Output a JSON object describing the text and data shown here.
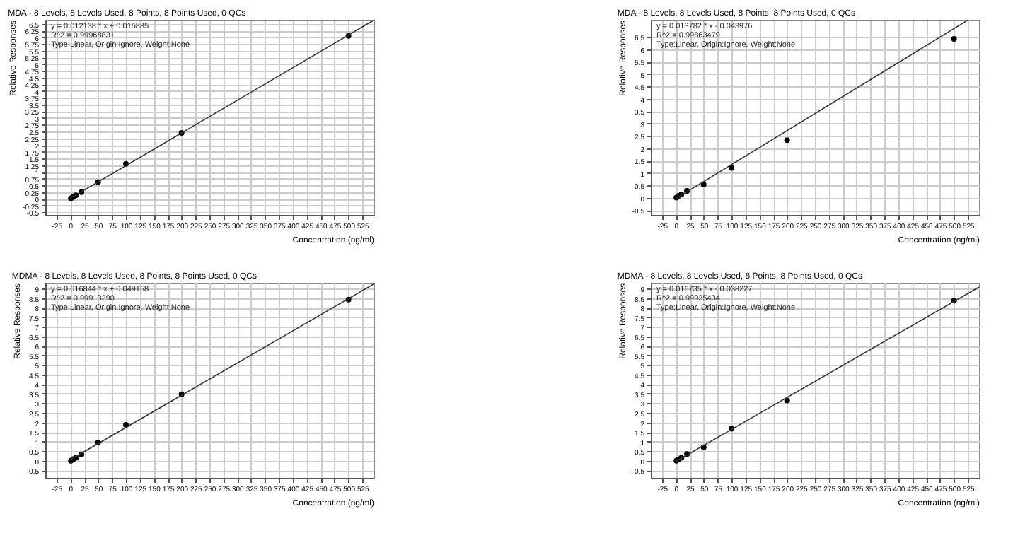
{
  "chart_data": [
    {
      "type": "scatter",
      "title": "MDA - 8 Levels, 8 Levels Used, 8 Points, 8 Points Used, 0 QCs",
      "xlabel": "Concentration (ng/ml)",
      "ylabel": "Relative Responses",
      "annotations": [
        "y = 0.012138 * x + 0.015885",
        "R^2 = 0.99968831",
        "Type:Linear, Origin:Ignore, Weight:None"
      ],
      "xlim": [
        -45,
        545
      ],
      "xticks": [
        -25,
        0,
        25,
        50,
        75,
        100,
        125,
        150,
        175,
        200,
        225,
        250,
        275,
        300,
        325,
        350,
        375,
        400,
        425,
        450,
        475,
        500,
        525
      ],
      "ylim": [
        -0.6,
        6.65
      ],
      "yticks": [
        -0.5,
        -0.25,
        0,
        0.25,
        0.5,
        0.75,
        1,
        1.25,
        1.5,
        1.75,
        2,
        2.25,
        2.5,
        2.75,
        3,
        3.25,
        3.5,
        3.75,
        4,
        4.25,
        4.5,
        4.75,
        5,
        5.25,
        5.5,
        5.75,
        6,
        6.25,
        6.5
      ],
      "grid": true,
      "series": [
        {
          "color": "#000000",
          "marker": "circle",
          "x": [
            1,
            5,
            10,
            20,
            50,
            100,
            200,
            500
          ],
          "values": [
            0.02,
            0.07,
            0.13,
            0.25,
            0.62,
            1.3,
            2.45,
            6.05
          ]
        },
        {
          "type": "line",
          "marker": "none",
          "color": "#333333",
          "x": [
            0,
            545
          ],
          "values": [
            0.02,
            6.63
          ]
        }
      ]
    },
    {
      "type": "scatter",
      "title": "MDA - 8 Levels, 8 Levels Used, 8 Points, 8 Points Used, 0 QCs",
      "xlabel": "Concentration (ng/ml)",
      "ylabel": "Relative Responses",
      "annotations": [
        "y = 0.013782 * x - 0.043976",
        "R^2 = 0.99863479",
        "Type:Linear, Origin:Ignore, Weight:None"
      ],
      "xlim": [
        -45,
        545
      ],
      "xticks": [
        -25,
        0,
        25,
        50,
        75,
        100,
        125,
        150,
        175,
        200,
        225,
        250,
        275,
        300,
        325,
        350,
        375,
        400,
        425,
        450,
        475,
        500,
        525
      ],
      "ylim": [
        -0.7,
        7.2
      ],
      "yticks": [
        -0.5,
        0,
        0.5,
        1,
        1.5,
        2,
        2.5,
        3,
        3.5,
        4,
        4.5,
        5,
        5.5,
        6,
        6.5
      ],
      "grid": true,
      "series": [
        {
          "color": "#000000",
          "marker": "circle",
          "x": [
            1,
            5,
            10,
            20,
            50,
            100,
            200,
            500
          ],
          "values": [
            0.0,
            0.07,
            0.13,
            0.27,
            0.53,
            1.2,
            2.33,
            6.43
          ]
        },
        {
          "type": "line",
          "marker": "none",
          "color": "#333333",
          "x": [
            0,
            525
          ],
          "values": [
            -0.04,
            7.19
          ]
        }
      ]
    },
    {
      "type": "scatter",
      "title": "MDMA - 8 Levels, 8 Levels Used, 8 Points, 8 Points Used, 0 QCs",
      "xlabel": "Concentration (ng/ml)",
      "ylabel": "Relative Responses",
      "annotations": [
        "y = 0.016844 * x + 0.049158",
        "R^2 = 0.99913290",
        "Type:Linear, Origin:Ignore, Weight:None"
      ],
      "xlim": [
        -45,
        545
      ],
      "xticks": [
        -25,
        0,
        25,
        50,
        75,
        100,
        125,
        150,
        175,
        200,
        225,
        250,
        275,
        300,
        325,
        350,
        375,
        400,
        425,
        450,
        475,
        500,
        525
      ],
      "ylim": [
        -0.9,
        9.3
      ],
      "yticks": [
        -0.5,
        0,
        0.5,
        1,
        1.5,
        2,
        2.5,
        3,
        3.5,
        4,
        4.5,
        5,
        5.5,
        6,
        6.5,
        7,
        7.5,
        8,
        8.5,
        9
      ],
      "grid": true,
      "series": [
        {
          "color": "#000000",
          "marker": "circle",
          "x": [
            1,
            5,
            10,
            20,
            50,
            100,
            200,
            500
          ],
          "values": [
            0.0,
            0.08,
            0.15,
            0.33,
            0.95,
            1.87,
            3.47,
            8.42
          ]
        },
        {
          "type": "line",
          "marker": "none",
          "color": "#333333",
          "x": [
            0,
            545
          ],
          "values": [
            0.05,
            9.23
          ]
        }
      ]
    },
    {
      "type": "scatter",
      "title": "MDMA - 8 Levels, 8 Levels Used, 8 Points, 8 Points Used, 0 QCs",
      "xlabel": "Concentration (ng/ml)",
      "ylabel": "Relative Responses",
      "annotations": [
        "y = 0.016735 * x - 0.038227",
        "R^2 = 0.99925434",
        "Type:Linear, Origin:Ignore, Weight:None"
      ],
      "xlim": [
        -45,
        545
      ],
      "xticks": [
        -25,
        0,
        25,
        50,
        75,
        100,
        125,
        150,
        175,
        200,
        225,
        250,
        275,
        300,
        325,
        350,
        375,
        400,
        425,
        450,
        475,
        500,
        525
      ],
      "ylim": [
        -0.9,
        9.3
      ],
      "yticks": [
        -0.5,
        0,
        0.5,
        1,
        1.5,
        2,
        2.5,
        3,
        3.5,
        4,
        4.5,
        5,
        5.5,
        6,
        6.5,
        7,
        7.5,
        8,
        8.5,
        9
      ],
      "grid": true,
      "series": [
        {
          "color": "#000000",
          "marker": "circle",
          "x": [
            1,
            5,
            10,
            20,
            50,
            100,
            200,
            500
          ],
          "values": [
            0.0,
            0.07,
            0.15,
            0.35,
            0.7,
            1.67,
            3.15,
            8.37
          ]
        },
        {
          "type": "line",
          "marker": "none",
          "color": "#333333",
          "x": [
            0,
            545
          ],
          "values": [
            -0.04,
            9.08
          ]
        }
      ]
    }
  ]
}
